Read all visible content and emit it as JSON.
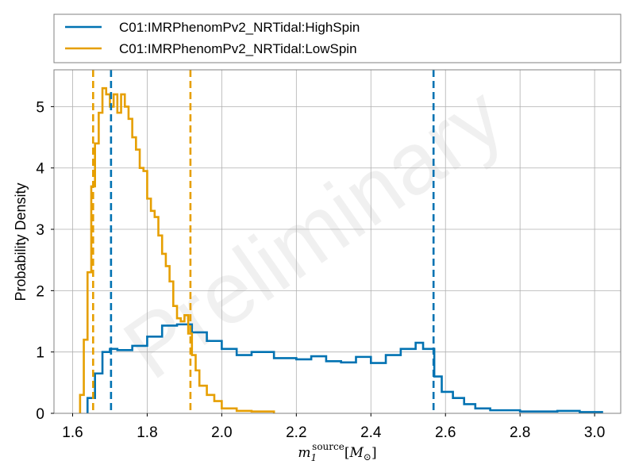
{
  "chart_data": {
    "type": "line",
    "title": "",
    "xlabel": "m_1^source [M_⊙]",
    "xlabel_parts": {
      "base": "m",
      "sub": "1",
      "sup": "source",
      "bracket_open": "[",
      "unit_base": "M",
      "unit_sub": "⊙",
      "bracket_close": "]"
    },
    "ylabel": "Probability Density",
    "xlim": [
      1.55,
      3.07
    ],
    "ylim": [
      0,
      5.6
    ],
    "xticks": [
      1.6,
      1.8,
      2.0,
      2.2,
      2.4,
      2.6,
      2.8,
      3.0
    ],
    "xtick_labels": [
      "1.6",
      "1.8",
      "2.0",
      "2.2",
      "2.4",
      "2.6",
      "2.8",
      "3.0"
    ],
    "yticks": [
      0,
      1,
      2,
      3,
      4,
      5
    ],
    "ytick_labels": [
      "0",
      "1",
      "2",
      "3",
      "4",
      "5"
    ],
    "grid": true,
    "legend_position": "top, above plot",
    "watermark": "Preliminary",
    "series": [
      {
        "name": "C01:IMRPhenomPv2_NRTidal:HighSpin",
        "color": "#0072b2",
        "style": "step",
        "bin_edges": [
          1.64,
          1.66,
          1.68,
          1.7,
          1.72,
          1.76,
          1.8,
          1.84,
          1.88,
          1.92,
          1.96,
          2.0,
          2.04,
          2.08,
          2.14,
          2.2,
          2.24,
          2.28,
          2.32,
          2.36,
          2.4,
          2.44,
          2.48,
          2.52,
          2.54,
          2.57,
          2.59,
          2.62,
          2.65,
          2.68,
          2.72,
          2.8,
          2.9,
          2.96,
          3.02
        ],
        "values": [
          0.25,
          0.65,
          1.0,
          1.05,
          1.03,
          1.1,
          1.25,
          1.43,
          1.45,
          1.32,
          1.18,
          1.05,
          0.95,
          1.0,
          0.9,
          0.88,
          0.93,
          0.85,
          0.83,
          0.92,
          0.82,
          0.95,
          1.05,
          1.15,
          1.05,
          0.6,
          0.35,
          0.25,
          0.15,
          0.08,
          0.05,
          0.03,
          0.04,
          0.02
        ]
      },
      {
        "name": "C01:IMRPhenomPv2_NRTidal:LowSpin",
        "color": "#e69f00",
        "style": "step",
        "bin_edges": [
          1.62,
          1.63,
          1.64,
          1.65,
          1.66,
          1.67,
          1.68,
          1.69,
          1.7,
          1.71,
          1.72,
          1.73,
          1.74,
          1.75,
          1.76,
          1.77,
          1.78,
          1.79,
          1.8,
          1.81,
          1.82,
          1.83,
          1.84,
          1.85,
          1.86,
          1.87,
          1.88,
          1.89,
          1.9,
          1.91,
          1.92,
          1.93,
          1.94,
          1.96,
          1.98,
          2.0,
          2.04,
          2.08,
          2.14
        ],
        "values": [
          0.3,
          1.2,
          2.3,
          3.7,
          4.4,
          4.9,
          5.3,
          5.2,
          5.0,
          5.2,
          4.9,
          5.2,
          5.0,
          4.8,
          4.5,
          4.3,
          4.0,
          3.95,
          3.5,
          3.3,
          3.2,
          2.9,
          2.6,
          2.4,
          2.15,
          1.75,
          1.55,
          1.5,
          1.6,
          1.3,
          0.95,
          0.7,
          0.45,
          0.3,
          0.2,
          0.08,
          0.04,
          0.03
        ]
      }
    ],
    "vlines": [
      {
        "series": "C01:IMRPhenomPv2_NRTidal:HighSpin",
        "x": 1.703,
        "color": "#0072b2"
      },
      {
        "series": "C01:IMRPhenomPv2_NRTidal:HighSpin",
        "x": 2.568,
        "color": "#0072b2"
      },
      {
        "series": "C01:IMRPhenomPv2_NRTidal:LowSpin",
        "x": 1.655,
        "color": "#e69f00"
      },
      {
        "series": "C01:IMRPhenomPv2_NRTidal:LowSpin",
        "x": 1.916,
        "color": "#e69f00"
      }
    ]
  }
}
